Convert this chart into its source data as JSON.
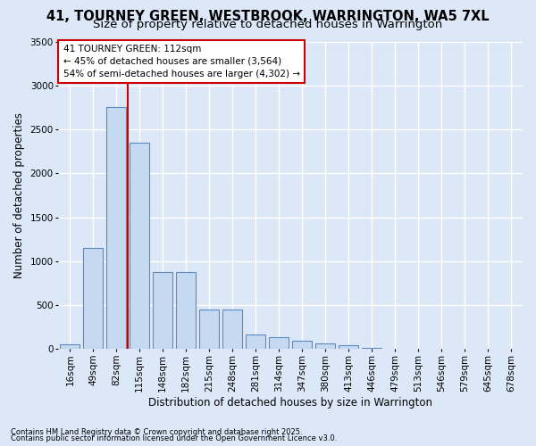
{
  "title1": "41, TOURNEY GREEN, WESTBROOK, WARRINGTON, WA5 7XL",
  "title2": "Size of property relative to detached houses in Warrington",
  "xlabel": "Distribution of detached houses by size in Warrington",
  "ylabel": "Number of detached properties",
  "footnote1": "Contains HM Land Registry data © Crown copyright and database right 2025.",
  "footnote2": "Contains public sector information licensed under the Open Government Licence v3.0.",
  "categories": [
    "16sqm",
    "49sqm",
    "82sqm",
    "115sqm",
    "148sqm",
    "182sqm",
    "215sqm",
    "248sqm",
    "281sqm",
    "314sqm",
    "347sqm",
    "380sqm",
    "413sqm",
    "446sqm",
    "479sqm",
    "513sqm",
    "546sqm",
    "579sqm",
    "645sqm",
    "678sqm"
  ],
  "values": [
    50,
    1150,
    2750,
    2350,
    875,
    875,
    450,
    450,
    170,
    130,
    90,
    65,
    40,
    15,
    5,
    2,
    1,
    0,
    0,
    0
  ],
  "bar_color": "#c5d9f1",
  "bar_edge_color": "#5b8bc5",
  "property_line_color": "#cc0000",
  "property_line_x": 2.5,
  "annotation_text1": "41 TOURNEY GREEN: 112sqm",
  "annotation_text2": "← 45% of detached houses are smaller (3,564)",
  "annotation_text3": "54% of semi-detached houses are larger (4,302) →",
  "annotation_box_facecolor": "#ffffff",
  "annotation_box_edgecolor": "#cc0000",
  "ylim": [
    0,
    3500
  ],
  "yticks": [
    0,
    500,
    1000,
    1500,
    2000,
    2500,
    3000,
    3500
  ],
  "background_color": "#dce8f8",
  "grid_color": "#ffffff",
  "title_fontsize": 10.5,
  "subtitle_fontsize": 9.5,
  "axis_label_fontsize": 8.5,
  "tick_fontsize": 7.5,
  "footnote_fontsize": 6.0
}
